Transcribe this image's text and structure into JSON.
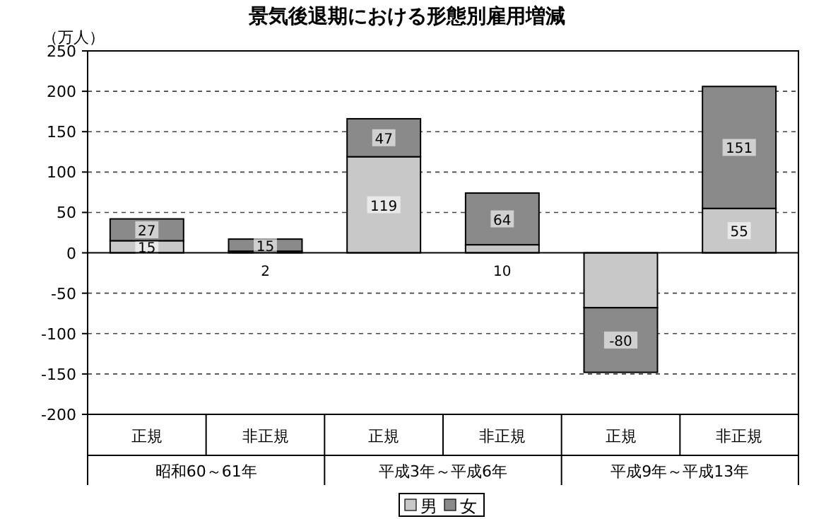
{
  "chart_data": {
    "type": "bar",
    "title": "景気後退期における形態別雇用増減",
    "ylabel": "（万人）",
    "categories": [
      "正規",
      "非正規",
      "正規",
      "非正規",
      "正規",
      "非正規"
    ],
    "annotations": [
      "昭和60～61年",
      "平成3年～平成6年",
      "平成9年～平成13年"
    ],
    "stacked": true,
    "series": [
      {
        "name": "男",
        "color": "#c8c8c8",
        "values": [
          15,
          2,
          119,
          10,
          -68,
          55
        ],
        "value_labels": [
          "15",
          "2",
          "119",
          "10",
          null,
          "55"
        ]
      },
      {
        "name": "女",
        "color": "#8a8a8a",
        "values": [
          27,
          15,
          47,
          64,
          -80,
          151
        ],
        "value_labels": [
          "27",
          "15",
          "47",
          "64",
          "-80",
          "151"
        ]
      }
    ],
    "ylim": [
      -200,
      250
    ],
    "yticks": [
      -200,
      -150,
      -100,
      -50,
      0,
      50,
      100,
      150,
      200,
      250
    ],
    "grid": "y",
    "legend": "bottom"
  }
}
